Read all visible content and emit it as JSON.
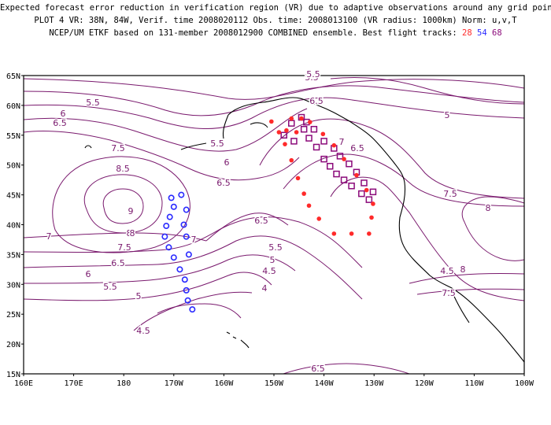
{
  "header": {
    "line1": "Expected forecast error reduction in verification region (VR) due to adaptive observations around any grid point.",
    "line2": "PLOT 4 VR: 38N, 84W, Verif. time 2008020112 Obs. time: 2008013100 (VR radius: 1000km) Norm: u,v,T",
    "line3_prefix": "NCEP/UM ETKF based on 131-member 2008012900 COMBINED ensemble.  Best flight tracks:",
    "track_28": "28",
    "track_54": "54",
    "track_68": "68"
  },
  "axes": {
    "lat_labels": [
      "65N",
      "60N",
      "55N",
      "50N",
      "45N",
      "40N",
      "35N",
      "30N",
      "25N",
      "20N",
      "15N"
    ],
    "lon_labels": [
      "160E",
      "170E",
      "180",
      "170W",
      "160W",
      "150W",
      "140W",
      "130W",
      "120W",
      "110W",
      "100W"
    ]
  },
  "contour_labels": [
    "5.5",
    "5.5",
    "6",
    "6.5",
    "7.5",
    "8.5",
    "8",
    "9",
    "8",
    "7.5",
    "7",
    "7",
    "6.5",
    "6",
    "5.5",
    "5",
    "4.5",
    "6.5",
    "5.5",
    "5",
    "4.5",
    "4",
    "5.5",
    "6",
    "6.5",
    "6.5",
    "7",
    "6.5",
    "4.5",
    "5",
    "7.5",
    "8",
    "8",
    "7.5",
    "6.5",
    "5.5"
  ],
  "colors": {
    "contour": "#7a1a6e",
    "track_28": "#ff2a2a",
    "track_54": "#2a2aff",
    "track_68": "#8b0a7a",
    "coast": "#000000"
  },
  "tracks": {
    "track_28_points": [
      [
        -150.5,
        57.3
      ],
      [
        -149,
        55.5
      ],
      [
        -147.8,
        53.5
      ],
      [
        -146.5,
        50.8
      ],
      [
        -145.2,
        47.8
      ],
      [
        -144,
        45.2
      ],
      [
        -143,
        43.2
      ],
      [
        -141,
        41
      ],
      [
        -138,
        38.5
      ],
      [
        -134.5,
        38.5
      ],
      [
        -131,
        38.5
      ],
      [
        -130.5,
        41.2
      ],
      [
        -130.2,
        43.5
      ],
      [
        -131.5,
        45.8
      ],
      [
        -133.5,
        48.3
      ],
      [
        -136,
        51
      ],
      [
        -138,
        53.3
      ],
      [
        -140.2,
        55.2
      ],
      [
        -142.8,
        57.2
      ],
      [
        -144.5,
        57.8
      ],
      [
        -146.5,
        57.8
      ],
      [
        -147.5,
        55.8
      ],
      [
        -145.5,
        55.5
      ]
    ],
    "track_54_points": [
      [
        -170.5,
        44.5
      ],
      [
        -170,
        43
      ],
      [
        -170.8,
        41.3
      ],
      [
        -171.5,
        39.8
      ],
      [
        -171.8,
        38
      ],
      [
        -171,
        36.2
      ],
      [
        -170,
        34.5
      ],
      [
        -168.8,
        32.5
      ],
      [
        -167.8,
        30.8
      ],
      [
        -167.5,
        29
      ],
      [
        -167.2,
        27.3
      ],
      [
        -166.3,
        25.8
      ],
      [
        -167,
        35
      ],
      [
        -167.5,
        38
      ],
      [
        -168,
        40
      ],
      [
        -167.5,
        42.5
      ],
      [
        -168.5,
        45
      ]
    ],
    "track_68_points": [
      [
        -148,
        55
      ],
      [
        -146,
        54
      ],
      [
        -146.5,
        57
      ],
      [
        -144.5,
        58
      ],
      [
        -144,
        56
      ],
      [
        -143,
        54.5
      ],
      [
        -141.5,
        53
      ],
      [
        -140,
        51
      ],
      [
        -138.8,
        49.8
      ],
      [
        -137.5,
        48.5
      ],
      [
        -136,
        47.5
      ],
      [
        -134.5,
        46.5
      ],
      [
        -132.5,
        45.2
      ],
      [
        -131,
        44.2
      ],
      [
        -130.2,
        45.5
      ],
      [
        -132,
        47
      ],
      [
        -133.5,
        48.8
      ],
      [
        -135,
        50.2
      ],
      [
        -136.8,
        51.5
      ],
      [
        -138,
        52.8
      ],
      [
        -140,
        54
      ],
      [
        -142,
        56
      ],
      [
        -143.5,
        57.2
      ]
    ]
  }
}
